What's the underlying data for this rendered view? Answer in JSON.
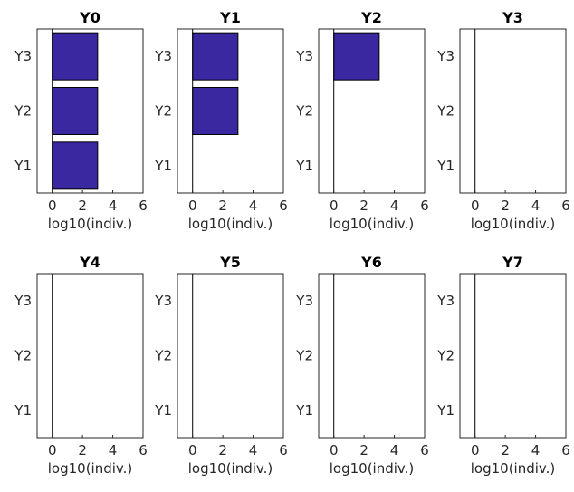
{
  "chart_data": {
    "type": "bar",
    "orientation": "horizontal",
    "layout": {
      "rows": 2,
      "cols": 4
    },
    "categories": [
      "Y1",
      "Y2",
      "Y3"
    ],
    "x_ticks": [
      "0",
      "2",
      "4",
      "6"
    ],
    "xlabel": "log10(indiv.)",
    "xlim": [
      -1,
      6
    ],
    "grid": false,
    "legend": "none",
    "colors": {
      "bar_fill": "#3a28a0",
      "bar_edge": "#000000",
      "axis": "#262626",
      "title": "#000000"
    },
    "panels": [
      {
        "title": "Y0",
        "values": [
          3,
          3,
          3
        ]
      },
      {
        "title": "Y1",
        "values": [
          0,
          3,
          3
        ]
      },
      {
        "title": "Y2",
        "values": [
          0,
          0,
          3
        ]
      },
      {
        "title": "Y3",
        "values": [
          0,
          0,
          0
        ]
      },
      {
        "title": "Y4",
        "values": [
          0,
          0,
          0
        ]
      },
      {
        "title": "Y5",
        "values": [
          0,
          0,
          0
        ]
      },
      {
        "title": "Y6",
        "values": [
          0,
          0,
          0
        ]
      },
      {
        "title": "Y7",
        "values": [
          0,
          0,
          0
        ]
      }
    ]
  }
}
